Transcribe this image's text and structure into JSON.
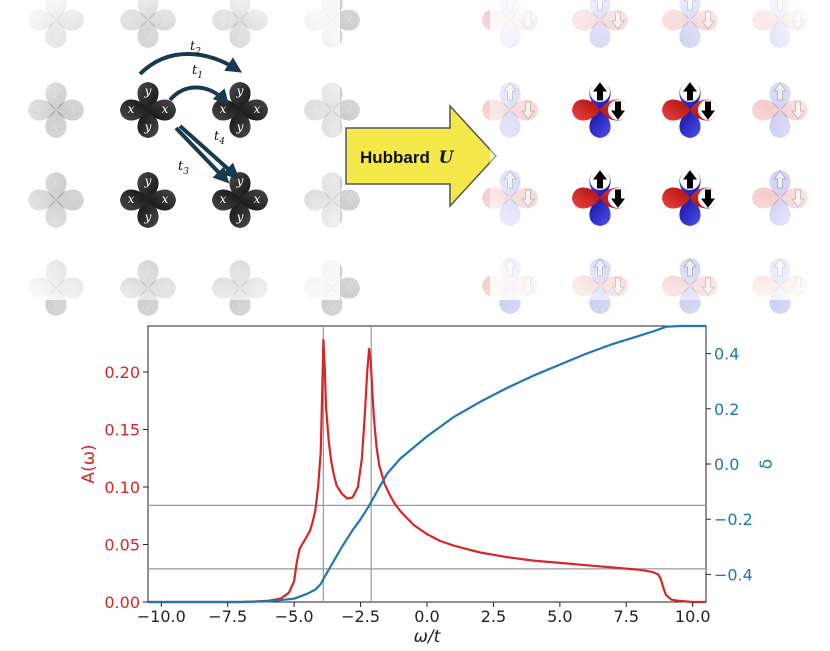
{
  "diagram": {
    "arrow_label": "Hubbard",
    "arrow_label_symbol": "U",
    "orbital_labels": {
      "x": "x",
      "y": "y"
    },
    "hoppings": [
      {
        "base": "t",
        "sub": "1"
      },
      {
        "base": "t",
        "sub": "2"
      },
      {
        "base": "t",
        "sub": "3"
      },
      {
        "base": "t",
        "sub": "4"
      }
    ],
    "colors": {
      "orbital_dark": "#2b2b2b",
      "spin_up_lobe": "#2020c8",
      "spin_down_lobe": "#d41f1f",
      "arrow_fill": "#f5e84a",
      "hopping_arrow": "#173a4f"
    }
  },
  "chart_data": {
    "type": "line",
    "xlabel": "ω/t",
    "ylabel_left": "A(ω)",
    "ylabel_right": "δ",
    "xlim": [
      -10.5,
      10.5
    ],
    "ylim_left": [
      0,
      0.24
    ],
    "ylim_right": [
      -0.5,
      0.5
    ],
    "xticks": [
      -10.0,
      -7.5,
      -5.0,
      -2.5,
      0.0,
      2.5,
      5.0,
      7.5,
      10.0
    ],
    "xtick_labels": [
      "−10.0",
      "−7.5",
      "−5.0",
      "−2.5",
      "0.0",
      "2.5",
      "5.0",
      "7.5",
      "10.0"
    ],
    "yticks_left": [
      0.0,
      0.05,
      0.1,
      0.15,
      0.2
    ],
    "ytick_labels_left": [
      "0.00",
      "0.05",
      "0.10",
      "0.15",
      "0.20"
    ],
    "yticks_right": [
      -0.4,
      -0.2,
      0.0,
      0.2,
      0.4
    ],
    "ytick_labels_right": [
      "−0.4",
      "−0.2",
      "0.0",
      "0.2",
      "0.4"
    ],
    "vlines": [
      -3.9,
      -2.1
    ],
    "hlines_right_axis": [
      -0.38,
      -0.15
    ],
    "colors": {
      "left": "#d62728",
      "right": "#1f77b4",
      "guide": "#9a9a9a"
    },
    "series": [
      {
        "axis": "left",
        "x": [
          -10.5,
          -7.0,
          -6.0,
          -5.5,
          -5.2,
          -5.0,
          -4.9,
          -4.8,
          -4.7,
          -4.6,
          -4.5,
          -4.4,
          -4.3,
          -4.2,
          -4.1,
          -4.0,
          -3.95,
          -3.9,
          -3.85,
          -3.8,
          -3.7,
          -3.6,
          -3.5,
          -3.4,
          -3.2,
          -3.0,
          -2.8,
          -2.6,
          -2.45,
          -2.35,
          -2.25,
          -2.18,
          -2.12,
          -2.05,
          -2.0,
          -1.9,
          -1.8,
          -1.6,
          -1.4,
          -1.2,
          -1.0,
          -0.8,
          -0.5,
          0.0,
          0.5,
          1.0,
          1.5,
          2.0,
          3.0,
          4.0,
          5.0,
          6.0,
          7.0,
          8.0,
          8.5,
          8.7,
          8.8,
          8.9,
          9.0,
          9.1,
          9.2,
          9.5,
          10.0,
          10.5
        ],
        "y": [
          0.0,
          0.0,
          0.001,
          0.003,
          0.008,
          0.018,
          0.035,
          0.046,
          0.05,
          0.054,
          0.058,
          0.062,
          0.07,
          0.08,
          0.1,
          0.13,
          0.175,
          0.228,
          0.205,
          0.17,
          0.14,
          0.122,
          0.11,
          0.101,
          0.094,
          0.09,
          0.091,
          0.1,
          0.125,
          0.16,
          0.2,
          0.22,
          0.21,
          0.18,
          0.16,
          0.135,
          0.119,
          0.103,
          0.093,
          0.085,
          0.079,
          0.074,
          0.067,
          0.059,
          0.053,
          0.049,
          0.046,
          0.043,
          0.039,
          0.036,
          0.034,
          0.032,
          0.03,
          0.028,
          0.026,
          0.024,
          0.02,
          0.012,
          0.006,
          0.004,
          0.002,
          0.001,
          0.0,
          0.0
        ]
      },
      {
        "axis": "right",
        "x": [
          -10.5,
          -7.0,
          -6.0,
          -5.0,
          -4.5,
          -4.2,
          -4.0,
          -3.8,
          -3.5,
          -3.2,
          -3.0,
          -2.8,
          -2.5,
          -2.2,
          -2.0,
          -1.8,
          -1.5,
          -1.0,
          0.0,
          1.0,
          2.0,
          3.0,
          4.0,
          5.0,
          6.0,
          7.0,
          8.0,
          8.5,
          9.0,
          9.5,
          10.5
        ],
        "y": [
          -0.5,
          -0.5,
          -0.498,
          -0.488,
          -0.47,
          -0.455,
          -0.435,
          -0.4,
          -0.35,
          -0.3,
          -0.27,
          -0.24,
          -0.2,
          -0.155,
          -0.12,
          -0.085,
          -0.035,
          0.02,
          0.1,
          0.17,
          0.225,
          0.275,
          0.32,
          0.36,
          0.4,
          0.435,
          0.465,
          0.48,
          0.497,
          0.5,
          0.5
        ]
      }
    ]
  }
}
